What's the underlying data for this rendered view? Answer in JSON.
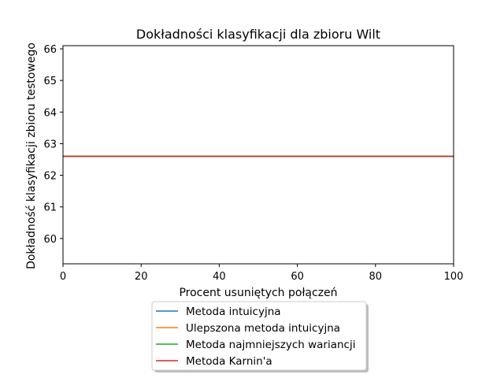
{
  "chart_data": {
    "type": "line",
    "title": "Dokładności klasyfikacji dla zbioru Wilt",
    "xlabel": "Procent usuniętych połączeń",
    "ylabel": "Dokładność klasyfikacji zbioru testowego",
    "xlim": [
      0,
      100
    ],
    "ylim": [
      59.2,
      66.1
    ],
    "xticks": [
      0,
      20,
      40,
      60,
      80,
      100
    ],
    "yticks": [
      60,
      61,
      62,
      63,
      64,
      65,
      66
    ],
    "grid": false,
    "legend_position": "bottom-center, below axes",
    "series": [
      {
        "name": "Metoda intuicyjna",
        "color": "#1f77b4",
        "x": [
          0,
          100
        ],
        "y": [
          62.6,
          62.6
        ]
      },
      {
        "name": "Ulepszona metoda intuicyjna",
        "color": "#ff7f0e",
        "x": [
          0,
          100
        ],
        "y": [
          62.6,
          62.6
        ]
      },
      {
        "name": "Metoda najmniejszych wariancji",
        "color": "#2ca02c",
        "x": [
          0,
          100
        ],
        "y": [
          62.6,
          62.6
        ]
      },
      {
        "name": "Metoda Karnin'a",
        "color": "#d62728",
        "x": [
          0,
          100
        ],
        "y": [
          62.6,
          62.6
        ]
      }
    ]
  }
}
